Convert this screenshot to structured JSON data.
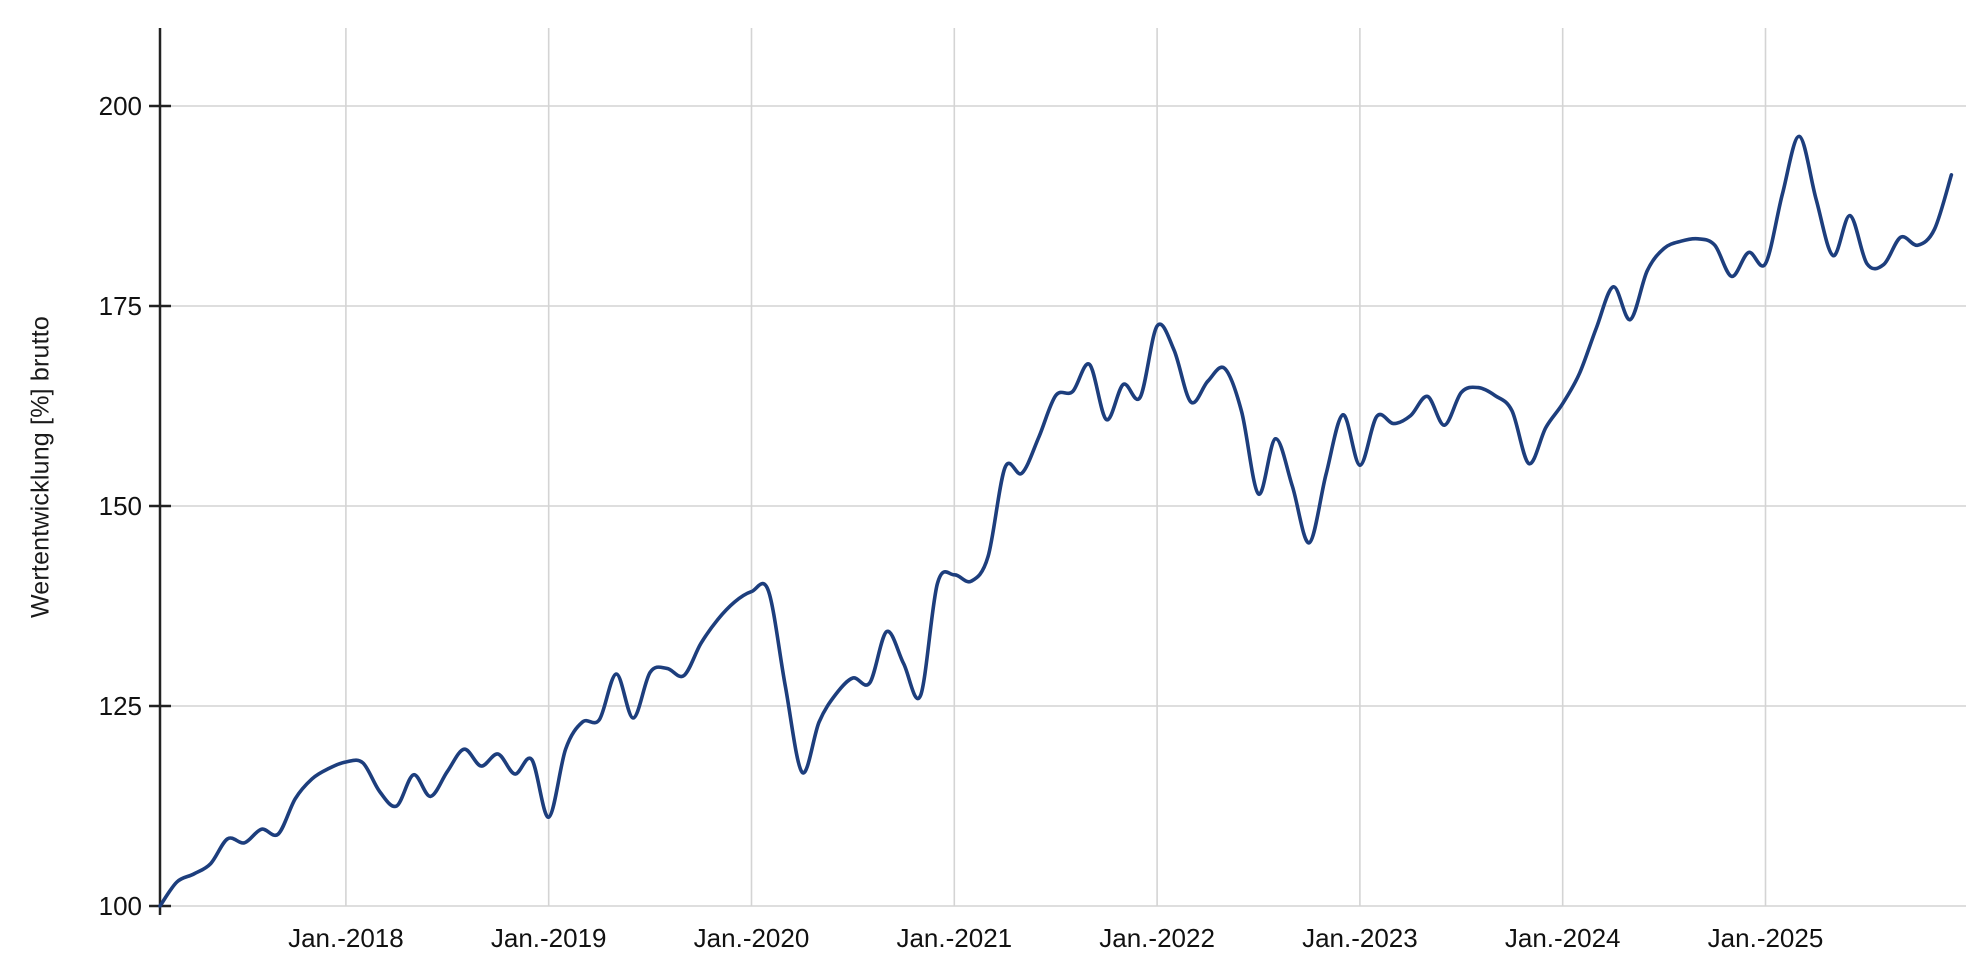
{
  "chart_data": {
    "type": "line",
    "title": "",
    "xlabel": "",
    "ylabel": "Wertentwicklung [%] brutto",
    "grid": true,
    "legend_position": "none",
    "background": "#ffffff",
    "line_color": "#1d3e7d",
    "ylim": [
      99,
      210
    ],
    "y_ticks": [
      100,
      125,
      150,
      175,
      200
    ],
    "x_gridline_labels": [
      "Jan.-2018",
      "Jan.-2019",
      "Jan.-2020",
      "Jan.-2021",
      "Jan.-2022",
      "Jan.-2023",
      "Jan.-2024",
      "Jan.-2025"
    ],
    "x_gridline_month_index": [
      11,
      23,
      35,
      47,
      59,
      71,
      83,
      95
    ],
    "series": [
      {
        "name": "Wertentwicklung [%] brutto",
        "color": "#1d3e7d",
        "start_month": "2017-01",
        "end_month": "2025-11",
        "months": [
          "2017-01",
          "2017-02",
          "2017-03",
          "2017-04",
          "2017-05",
          "2017-06",
          "2017-07",
          "2017-08",
          "2017-09",
          "2017-10",
          "2017-11",
          "2017-12",
          "2018-01",
          "2018-02",
          "2018-03",
          "2018-04",
          "2018-05",
          "2018-06",
          "2018-07",
          "2018-08",
          "2018-09",
          "2018-10",
          "2018-11",
          "2018-12",
          "2019-01",
          "2019-02",
          "2019-03",
          "2019-04",
          "2019-05",
          "2019-06",
          "2019-07",
          "2019-08",
          "2019-09",
          "2019-10",
          "2019-11",
          "2019-12",
          "2020-01",
          "2020-02",
          "2020-03",
          "2020-04",
          "2020-05",
          "2020-06",
          "2020-07",
          "2020-08",
          "2020-09",
          "2020-10",
          "2020-11",
          "2020-12",
          "2021-01",
          "2021-02",
          "2021-03",
          "2021-04",
          "2021-05",
          "2021-06",
          "2021-07",
          "2021-08",
          "2021-09",
          "2021-10",
          "2021-11",
          "2021-12",
          "2022-01",
          "2022-02",
          "2022-03",
          "2022-04",
          "2022-05",
          "2022-06",
          "2022-07",
          "2022-08",
          "2022-09",
          "2022-10",
          "2022-11",
          "2022-12",
          "2023-01",
          "2023-02",
          "2023-03",
          "2023-04",
          "2023-05",
          "2023-06",
          "2023-07",
          "2023-08",
          "2023-09",
          "2023-10",
          "2023-11",
          "2023-12",
          "2024-01",
          "2024-02",
          "2024-03",
          "2024-04",
          "2024-05",
          "2024-06",
          "2024-07",
          "2024-08",
          "2024-09",
          "2024-10",
          "2024-11",
          "2024-12",
          "2025-01",
          "2025-02",
          "2025-03",
          "2025-04",
          "2025-05",
          "2025-06",
          "2025-07",
          "2025-08",
          "2025-09",
          "2025-10",
          "2025-11"
        ],
        "values": [
          100.0,
          103.0,
          104.0,
          105.3,
          108.4,
          107.9,
          109.6,
          109.0,
          113.4,
          115.9,
          117.2,
          118.0,
          117.9,
          114.3,
          112.5,
          116.4,
          113.7,
          116.8,
          119.6,
          117.5,
          119.0,
          116.5,
          118.3,
          111.1,
          119.6,
          123.0,
          123.3,
          129.0,
          123.5,
          129.2,
          129.7,
          128.8,
          132.8,
          135.8,
          138.0,
          139.3,
          139.4,
          127.5,
          116.7,
          123.0,
          126.5,
          128.5,
          127.9,
          134.3,
          130.3,
          126.3,
          140.3,
          141.4,
          140.6,
          143.7,
          154.8,
          154.1,
          158.6,
          163.8,
          164.3,
          167.7,
          160.8,
          165.2,
          163.6,
          172.5,
          169.5,
          163.0,
          165.6,
          167.2,
          161.8,
          151.5,
          158.4,
          152.5,
          145.4,
          154.0,
          161.4,
          155.1,
          161.2,
          160.3,
          161.3,
          163.7,
          160.1,
          164.2,
          164.8,
          163.8,
          161.9,
          155.3,
          159.8,
          162.8,
          166.6,
          172.3,
          177.4,
          173.3,
          179.4,
          182.2,
          183.1,
          183.4,
          182.6,
          178.7,
          181.7,
          180.3,
          189.0,
          196.2,
          188.3,
          181.3,
          186.3,
          180.3,
          180.2,
          183.6,
          182.6,
          184.6,
          191.4
        ]
      }
    ]
  },
  "axes": {
    "axis_color": "#222222",
    "grid_color": "#d4d4d4",
    "tick_label_color": "#111111"
  }
}
